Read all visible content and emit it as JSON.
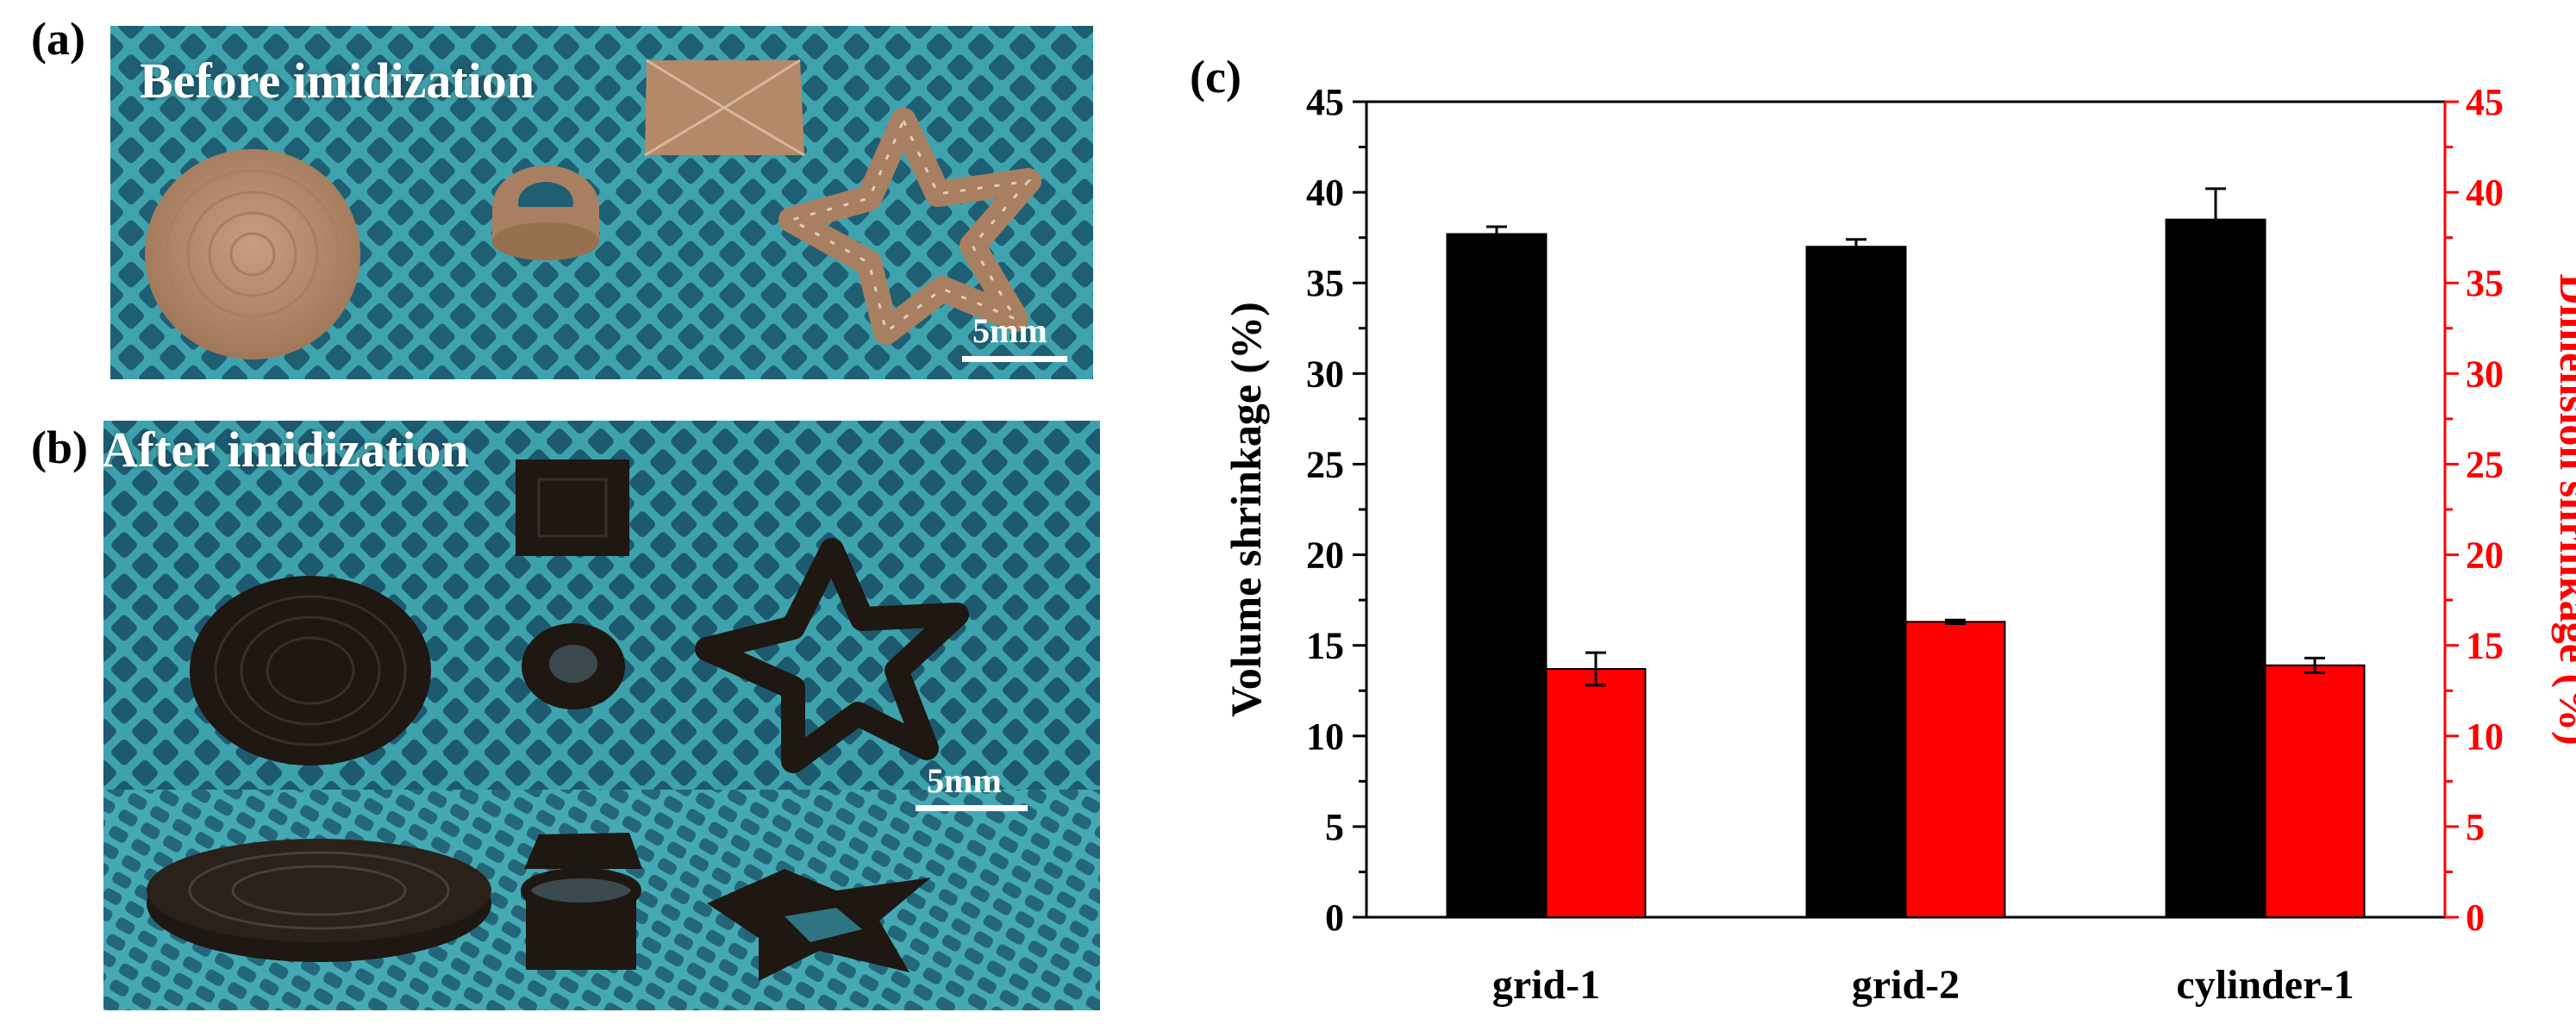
{
  "panels": {
    "a": {
      "label": "(a)",
      "caption": "Before imidization",
      "scale_label": "5mm",
      "objects": [
        "disc",
        "ring",
        "pyramid",
        "star"
      ],
      "object_color": "#b38b6d"
    },
    "b": {
      "label": "(b)",
      "caption": "After imidization",
      "scale_label": "5mm",
      "objects": [
        "disc",
        "ring",
        "pyramid",
        "star"
      ],
      "object_color": "#1e1712"
    },
    "c": {
      "label": "(c)"
    }
  },
  "colors": {
    "background_mesh": "#3fa3ad",
    "volume": "#000000",
    "dimension": "#ff0000",
    "axis_left": "#000000",
    "axis_right": "#ff0000"
  },
  "chart_data": {
    "type": "bar",
    "categories": [
      "grid-1",
      "grid-2",
      "cylinder-1"
    ],
    "series": [
      {
        "name": "Volume shrinkage",
        "axis": "left",
        "color": "#000000",
        "values": [
          37.7,
          37.0,
          38.5
        ],
        "errors": [
          0.4,
          0.4,
          1.7
        ]
      },
      {
        "name": "Dimension shrinkage",
        "axis": "right",
        "color": "#ff0000",
        "values": [
          13.7,
          16.3,
          13.9
        ],
        "errors": [
          0.9,
          0.1,
          0.4
        ]
      }
    ],
    "ylabel": "Volume shrinkage (%)",
    "ylabel_right": "Dimension shrinkage (%)",
    "ylim": [
      0,
      45
    ],
    "ylim_right": [
      0,
      45
    ],
    "yticks": [
      0,
      5,
      10,
      15,
      20,
      25,
      30,
      35,
      40,
      45
    ],
    "grid": false,
    "legend": "none"
  }
}
